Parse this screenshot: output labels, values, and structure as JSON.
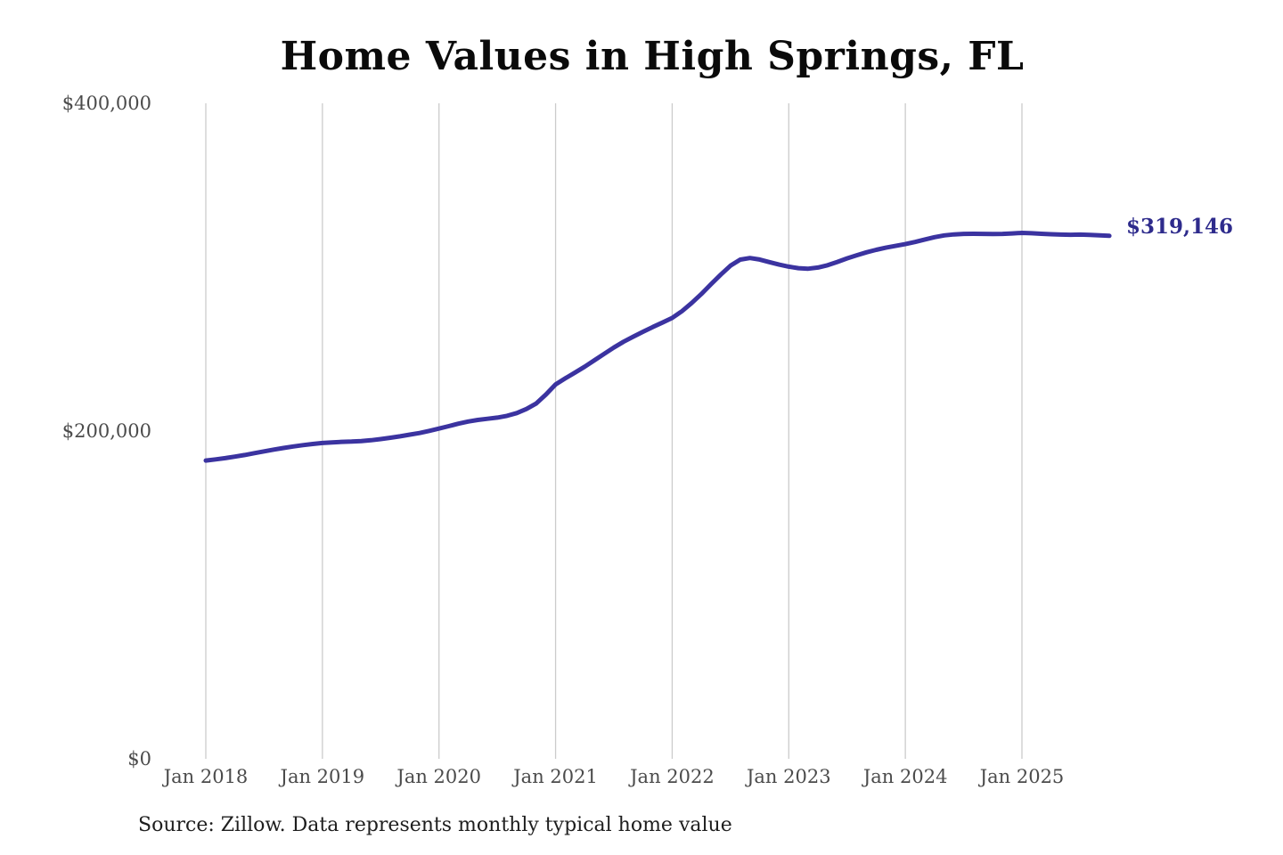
{
  "title": "Home Values in High Springs, FL",
  "source_note": "Source: Zillow. Data represents monthly typical home value",
  "end_label": "$319,146",
  "colors": {
    "line": "#3b33a0",
    "end_label": "#2e2b8c",
    "grid": "#cbcbcb",
    "axis_text": "#4b4b4b",
    "title_text": "#0a0a0a",
    "source_text": "#1e1e1e",
    "background": "#ffffff"
  },
  "chart_data": {
    "type": "line",
    "title": "Home Values in High Springs, FL",
    "xlabel": "",
    "ylabel": "",
    "ylim": [
      0,
      400000
    ],
    "grid": "vertical-only",
    "legend": "none",
    "x_tick_labels": [
      "Jan 2018",
      "Jan 2019",
      "Jan 2020",
      "Jan 2021",
      "Jan 2022",
      "Jan 2023",
      "Jan 2024",
      "Jan 2025"
    ],
    "y_ticks": [
      {
        "label": "$0",
        "value": 0
      },
      {
        "label": "$200,000",
        "value": 200000
      },
      {
        "label": "$400,000",
        "value": 400000
      }
    ],
    "annotations": [
      {
        "text": "$319,146",
        "attached_to": "last-point"
      }
    ],
    "series": [
      {
        "name": "Monthly typical home value",
        "interval": "monthly",
        "x_start": "Jan 2018",
        "x_end": "Oct 2025",
        "last_value": 319146,
        "values": [
          182000,
          182700,
          183500,
          184400,
          185400,
          186500,
          187600,
          188700,
          189700,
          190600,
          191400,
          192100,
          192700,
          193100,
          193400,
          193600,
          193900,
          194400,
          195100,
          195900,
          196800,
          197800,
          198800,
          200100,
          201500,
          203000,
          204500,
          205800,
          206800,
          207500,
          208200,
          209300,
          211000,
          213500,
          216800,
          222300,
          228500,
          232200,
          235700,
          239300,
          243200,
          247100,
          251000,
          254500,
          257600,
          260600,
          263500,
          266200,
          269000,
          273100,
          278100,
          283600,
          289600,
          295500,
          300900,
          304600,
          305600,
          304700,
          303100,
          301600,
          300300,
          299400,
          299100,
          299800,
          301200,
          303200,
          305400,
          307300,
          309100,
          310600,
          311900,
          313000,
          314100,
          315400,
          316900,
          318300,
          319400,
          320000,
          320300,
          320400,
          320300,
          320200,
          320300,
          320600,
          320900,
          320700,
          320400,
          320100,
          319900,
          319800,
          319900,
          319700,
          319400,
          319146
        ]
      }
    ]
  }
}
